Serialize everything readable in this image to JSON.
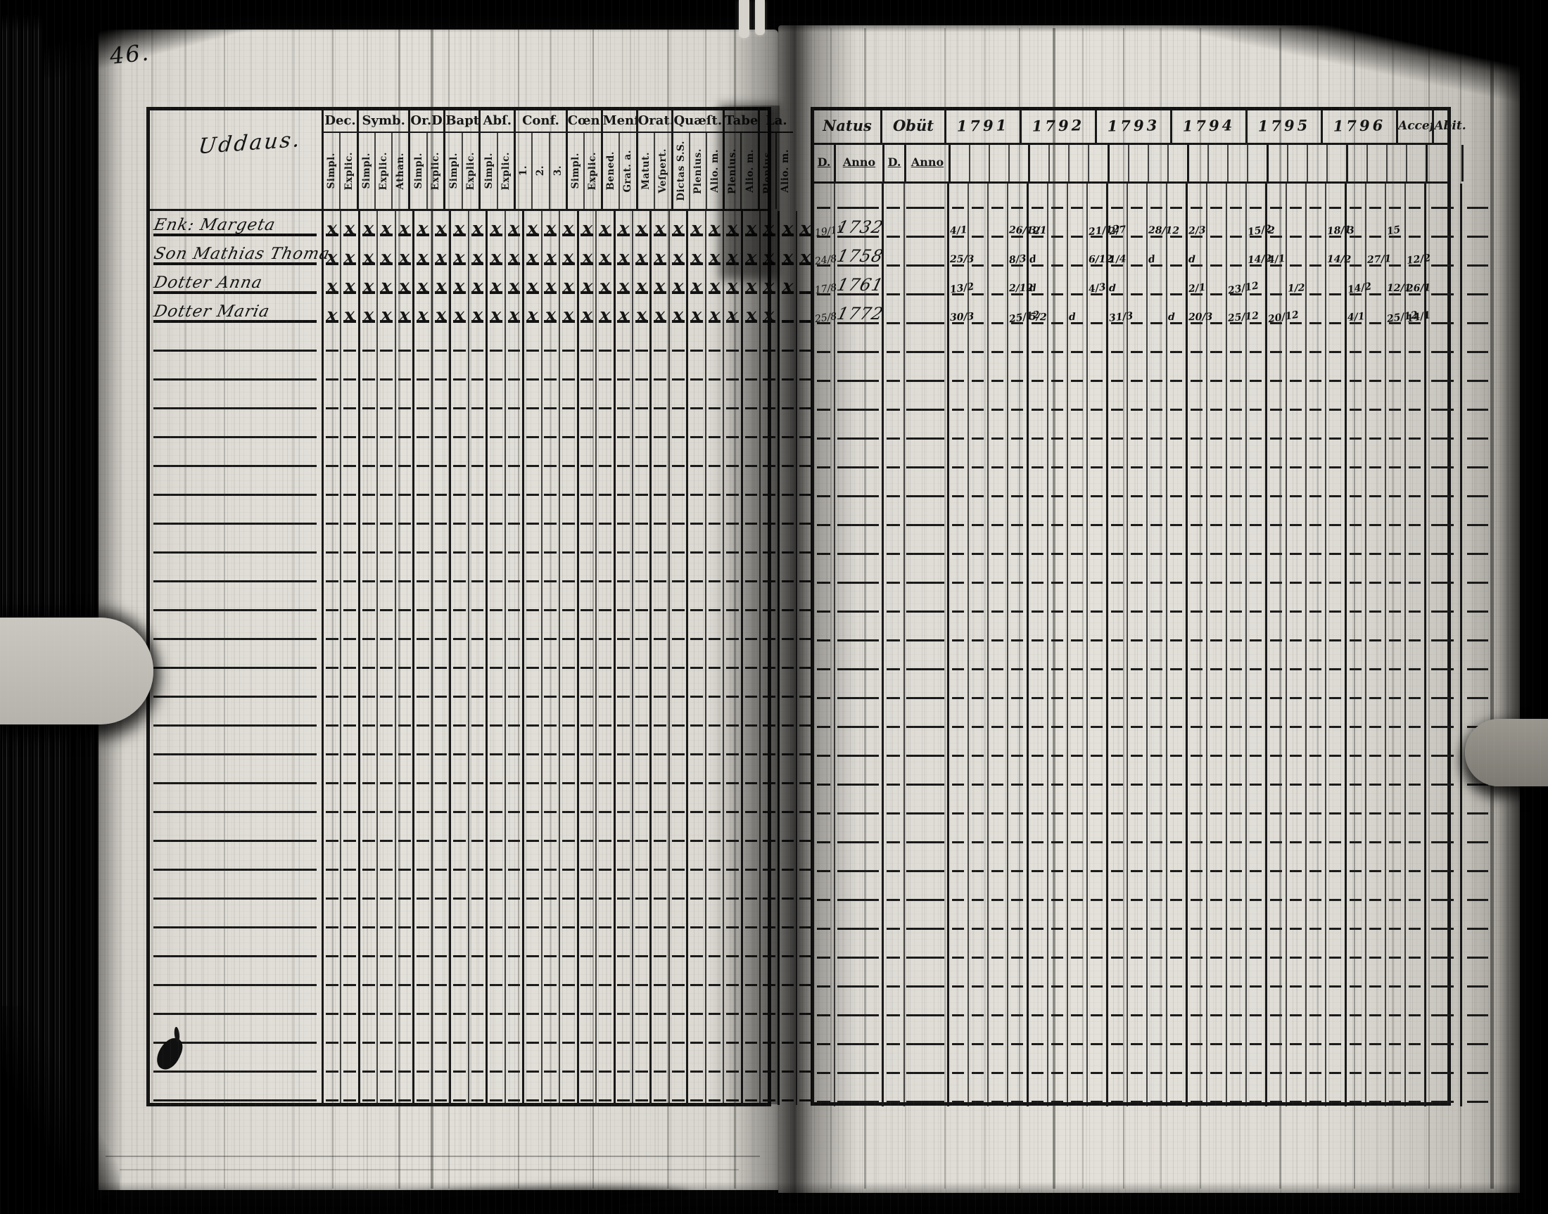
{
  "page_number": "46.",
  "left_table": {
    "title": "Uddaus.",
    "rows": 31,
    "columns": [
      {
        "label": "Dec.",
        "subs": [
          "Simpl.",
          "Explic."
        ]
      },
      {
        "label": "Symb.",
        "subs": [
          "Simpl.",
          "Explic.",
          "Athan."
        ]
      },
      {
        "label": "Or.D.",
        "subs": [
          "Simpl.",
          "Explic."
        ]
      },
      {
        "label": "Bapt.",
        "subs": [
          "Simpl.",
          "Explic."
        ]
      },
      {
        "label": "Abſ.",
        "subs": [
          "Simpl.",
          "Explic."
        ]
      },
      {
        "label": "Conf.",
        "subs": [
          "1.",
          "2.",
          "3."
        ]
      },
      {
        "label": "Cœn.D.",
        "subs": [
          "Simpl.",
          "Explic."
        ]
      },
      {
        "label": "Menſ.",
        "subs": [
          "Bened.",
          "Grat. a."
        ]
      },
      {
        "label": "Orat.",
        "subs": [
          "Matut.",
          "Veſpert."
        ]
      },
      {
        "label": "Quæſt.",
        "subs": [
          "Dictas S.S.",
          "Plenius.",
          "Alio. m."
        ]
      },
      {
        "label": "Tabel.",
        "subs": [
          "Plenius.",
          "Alio. m."
        ]
      },
      {
        "label": "La.",
        "subs": [
          "Plenius.",
          "Alio. m."
        ]
      }
    ],
    "entries": [
      {
        "name": "Enk: Margeta",
        "marks": [
          1,
          1,
          1,
          1,
          1,
          1,
          1,
          1,
          1,
          1,
          1,
          1,
          1,
          1,
          1,
          1,
          1,
          1,
          1,
          1,
          1,
          1,
          1,
          1,
          1,
          1,
          1
        ]
      },
      {
        "name": "Son Mathias Thoma",
        "marks": [
          1,
          1,
          1,
          1,
          1,
          1,
          1,
          1,
          1,
          1,
          1,
          1,
          1,
          1,
          1,
          1,
          1,
          1,
          1,
          1,
          1,
          1,
          1,
          1,
          1,
          1,
          1
        ]
      },
      {
        "name": "Dotter Anna",
        "marks": [
          1,
          1,
          1,
          1,
          1,
          1,
          1,
          1,
          1,
          1,
          1,
          1,
          1,
          1,
          1,
          1,
          1,
          1,
          1,
          1,
          1,
          1,
          1,
          1,
          1,
          1,
          0
        ]
      },
      {
        "name": "Dotter Maria",
        "marks": [
          1,
          1,
          1,
          1,
          1,
          1,
          1,
          1,
          1,
          1,
          1,
          1,
          1,
          1,
          1,
          1,
          1,
          1,
          1,
          1,
          1,
          1,
          1,
          1,
          1,
          0,
          0
        ]
      }
    ]
  },
  "right_table": {
    "rows": 32,
    "natus_label": "Natus",
    "obiit_label": "Obüt",
    "day_label": "D.",
    "anno_label": "Anno",
    "years": [
      "1791",
      "1792",
      "1793",
      "1794",
      "1795",
      "1796"
    ],
    "accessit_label": "Acceſ.",
    "abiit_label": "Abit.",
    "entries": [
      {
        "natus_d": "19/11",
        "natus_anno": "1732",
        "obiit_d": "",
        "obiit_anno": "",
        "marks": [
          [
            0,
            0,
            "4/1"
          ],
          [
            0,
            3,
            "26/12"
          ],
          [
            1,
            0,
            "3/1"
          ],
          [
            1,
            3,
            "21/12"
          ],
          [
            2,
            0,
            "2/7"
          ],
          [
            2,
            2,
            "28/12"
          ],
          [
            3,
            0,
            "2/3"
          ],
          [
            3,
            3,
            "15/2"
          ],
          [
            4,
            0,
            "2"
          ],
          [
            4,
            3,
            "18/1"
          ],
          [
            5,
            0,
            "3"
          ],
          [
            5,
            2,
            "15"
          ]
        ]
      },
      {
        "natus_d": "24/8",
        "natus_anno": "1758",
        "obiit_d": "",
        "obiit_anno": "",
        "marks": [
          [
            0,
            0,
            "25/3"
          ],
          [
            0,
            3,
            "8/3"
          ],
          [
            1,
            0,
            "d"
          ],
          [
            1,
            3,
            "6/12"
          ],
          [
            2,
            0,
            "1/4"
          ],
          [
            2,
            2,
            "d"
          ],
          [
            3,
            0,
            "d"
          ],
          [
            3,
            3,
            "14/2"
          ],
          [
            4,
            0,
            "4/1"
          ],
          [
            4,
            3,
            "14/2"
          ],
          [
            5,
            1,
            "27/1"
          ],
          [
            5,
            3,
            "12/2"
          ]
        ]
      },
      {
        "natus_d": "17/8",
        "natus_anno": "1761",
        "obiit_d": "",
        "obiit_anno": "",
        "marks": [
          [
            0,
            0,
            "13/2"
          ],
          [
            0,
            3,
            "2/12"
          ],
          [
            1,
            0,
            "d"
          ],
          [
            1,
            3,
            "4/3"
          ],
          [
            2,
            0,
            "d"
          ],
          [
            3,
            0,
            "2/1"
          ],
          [
            3,
            2,
            "23/12"
          ],
          [
            4,
            1,
            "1/2"
          ],
          [
            5,
            0,
            "14/2"
          ],
          [
            5,
            2,
            "12/1"
          ],
          [
            5,
            3,
            "26/1"
          ]
        ]
      },
      {
        "natus_d": "25/8",
        "natus_anno": "1772",
        "obiit_d": "",
        "obiit_anno": "",
        "marks": [
          [
            0,
            0,
            "30/3"
          ],
          [
            0,
            3,
            "25/12"
          ],
          [
            1,
            0,
            "5/2"
          ],
          [
            1,
            2,
            "d"
          ],
          [
            2,
            0,
            "31/3"
          ],
          [
            2,
            3,
            "d"
          ],
          [
            3,
            0,
            "20/3"
          ],
          [
            3,
            2,
            "25/12"
          ],
          [
            4,
            0,
            "20/12"
          ],
          [
            5,
            0,
            "4/1"
          ],
          [
            5,
            2,
            "25/12"
          ],
          [
            5,
            3,
            "14/1"
          ]
        ]
      }
    ]
  }
}
